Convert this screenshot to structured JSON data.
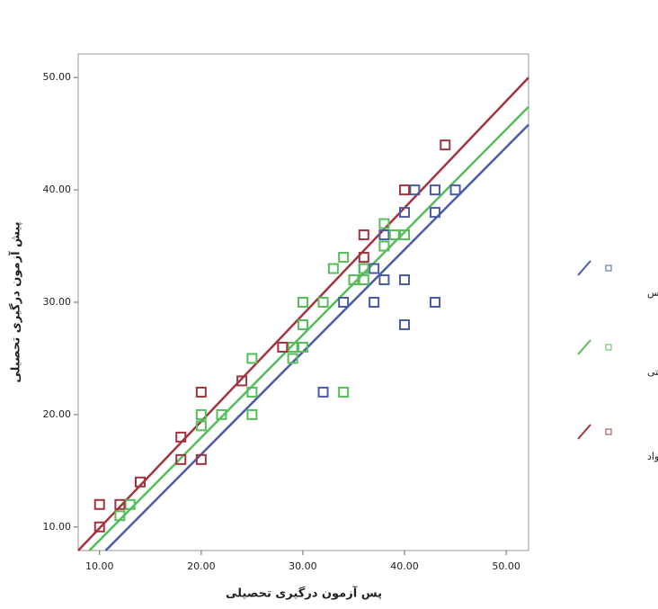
{
  "chart_data": {
    "type": "scatter",
    "x_label": "پس آزمون درگیری تحصیلی",
    "y_label": "پیش آزمون درگیری تحصیلی",
    "xlim": [
      7.9,
      52.2
    ],
    "ylim": [
      7.9,
      52.1
    ],
    "xticks": [
      {
        "value": 10,
        "label": "10.00"
      },
      {
        "value": 20,
        "label": "20.00"
      },
      {
        "value": 30,
        "label": "30.00"
      },
      {
        "value": 40,
        "label": "40.00"
      },
      {
        "value": 50,
        "label": "50.00"
      }
    ],
    "yticks": [
      {
        "value": 10,
        "label": "10.00"
      },
      {
        "value": 20,
        "label": "20.00"
      },
      {
        "value": 30,
        "label": "30.00"
      },
      {
        "value": 40,
        "label": "40.00"
      },
      {
        "value": 50,
        "label": "50.00"
      }
    ],
    "series": [
      {
        "name": "گروه آموزش معکوس",
        "color": "#4a5ca8",
        "x": [
          32,
          34,
          35,
          36,
          37,
          37,
          38,
          38,
          40,
          40,
          40,
          41,
          43,
          43,
          43,
          45
        ],
        "y": [
          22,
          30,
          32,
          33,
          30,
          33,
          32,
          36,
          38,
          32,
          28,
          40,
          40,
          38,
          30,
          40
        ],
        "fit": {
          "x": [
            10.6,
            52.2
          ],
          "y": [
            7.9,
            45.8
          ]
        }
      },
      {
        "name": "گروه آموزش مشارکتی",
        "color": "#55be5a",
        "x": [
          12,
          13,
          20,
          20,
          22,
          25,
          25,
          25,
          29,
          29,
          30,
          30,
          30,
          32,
          33,
          34,
          35,
          36,
          36,
          38,
          38,
          39,
          40,
          34
        ],
        "y": [
          11,
          12,
          20,
          19,
          20,
          25,
          22,
          20,
          25,
          26,
          26,
          28,
          30,
          30,
          33,
          34,
          32,
          32,
          33,
          35,
          37,
          36,
          36,
          22
        ],
        "fit": {
          "x": [
            9,
            52.2
          ],
          "y": [
            7.9,
            47.4
          ]
        }
      },
      {
        "name": "گروه گواد",
        "color": "#a3343f",
        "x": [
          10,
          10,
          12,
          14,
          18,
          18,
          20,
          20,
          24,
          28,
          36,
          36,
          40,
          44
        ],
        "y": [
          12,
          10,
          12,
          14,
          18,
          16,
          22,
          16,
          23,
          26,
          36,
          34,
          40,
          44
        ],
        "fit": {
          "x": [
            7.9,
            52.2
          ],
          "y": [
            7.9,
            50
          ]
        }
      }
    ]
  }
}
